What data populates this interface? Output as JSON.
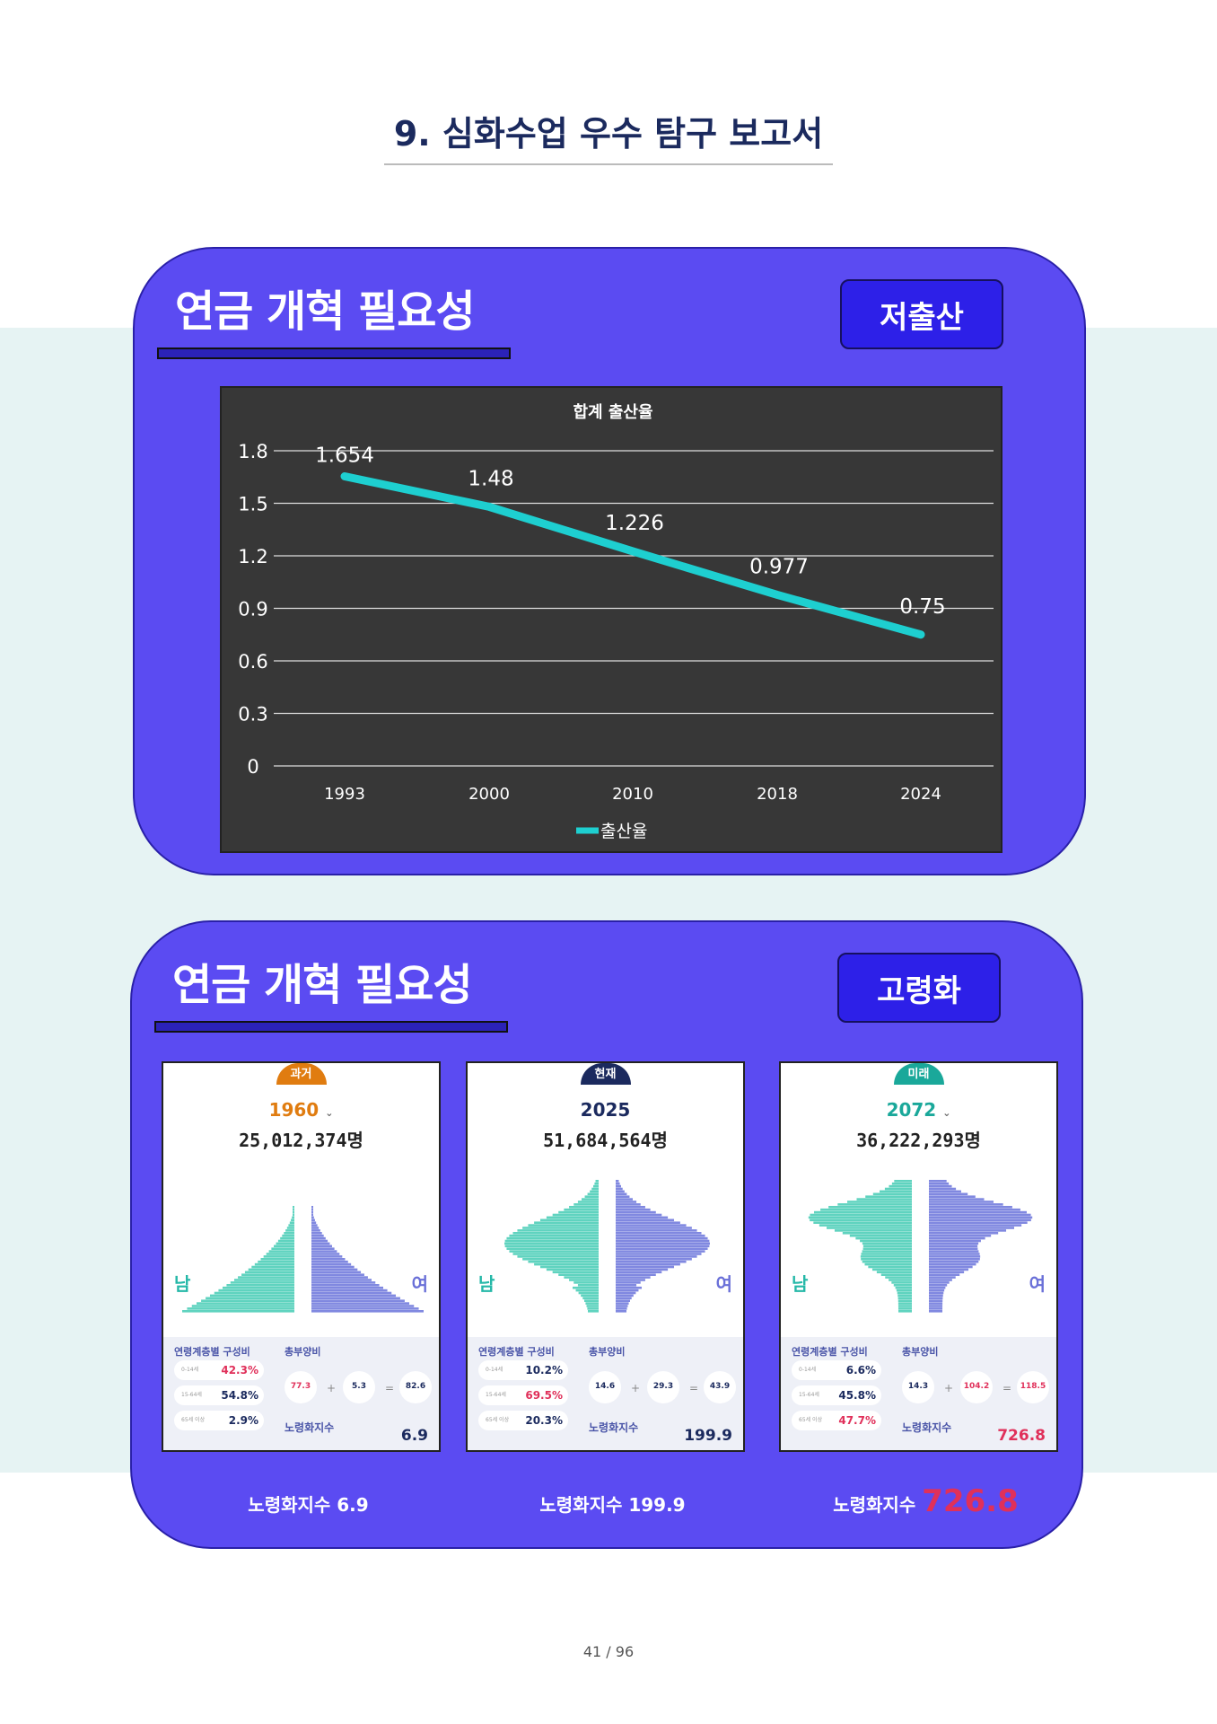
{
  "header": {
    "title": "9. 심화수업 우수 탐구 보고서"
  },
  "section1": {
    "heading": "연금 개혁 필요성",
    "badge": "저출산"
  },
  "section2": {
    "heading": "연금 개혁 필요성",
    "badge": "고령화"
  },
  "chart_data": {
    "type": "line",
    "title": "합계 출산율",
    "categories": [
      "1993",
      "2000",
      "2010",
      "2018",
      "2024"
    ],
    "series": [
      {
        "name": "출산율",
        "values": [
          1.654,
          1.48,
          1.226,
          0.977,
          0.75
        ],
        "color": "#1ecfd0"
      }
    ],
    "data_labels": [
      "1.654",
      "1.48",
      "1.226",
      "0.977",
      "0.75"
    ],
    "yticks": [
      "0",
      "0.3",
      "0.6",
      "0.9",
      "1.2",
      "1.5",
      "1.8"
    ],
    "ylim": [
      0,
      1.8
    ],
    "grid": true,
    "legend": "bottom"
  },
  "pyramids": [
    {
      "era": "과거",
      "era_color": "#e07c10",
      "year": "1960",
      "population": "25,012,374명",
      "male": "남",
      "female": "여",
      "composition_title": "연령계층별 구성비",
      "dependency_title": "총부양비",
      "youth": "42.3%",
      "working": "54.8%",
      "elderly": "2.9%",
      "youth_dep": "77.3",
      "old_dep": "5.3",
      "total_dep": "82.6",
      "aging_title": "노령화지수",
      "aging": "6.9",
      "label": "노령화지수 6.9",
      "label_value": "",
      "hi": [
        0
      ]
    },
    {
      "era": "현재",
      "era_color": "#1b2a5e",
      "year": "2025",
      "population": "51,684,564명",
      "male": "남",
      "female": "여",
      "composition_title": "연령계층별 구성비",
      "dependency_title": "총부양비",
      "youth": "10.2%",
      "working": "69.5%",
      "elderly": "20.3%",
      "youth_dep": "14.6",
      "old_dep": "29.3",
      "total_dep": "43.9",
      "aging_title": "노령화지수",
      "aging": "199.9",
      "label": "노령화지수 199.9",
      "label_value": "",
      "hi": [
        1
      ]
    },
    {
      "era": "미래",
      "era_color": "#1aa89a",
      "year": "2072",
      "population": "36,222,293명",
      "male": "남",
      "female": "여",
      "composition_title": "연령계층별 구성비",
      "dependency_title": "총부양비",
      "youth": "6.6%",
      "working": "45.8%",
      "elderly": "47.7%",
      "youth_dep": "14.3",
      "old_dep": "104.2",
      "total_dep": "118.5",
      "aging_title": "노령화지수",
      "aging": "726.8",
      "label": "노령화지수 ",
      "label_value": "726.8",
      "hi": [
        2
      ]
    }
  ],
  "colors": {
    "accent": "#5b4bf2",
    "badge": "#2d20e8",
    "line": "#1ecfd0",
    "red": "#e0305a",
    "navy": "#1b2a5e"
  },
  "footer": {
    "page": "41 / 96"
  }
}
